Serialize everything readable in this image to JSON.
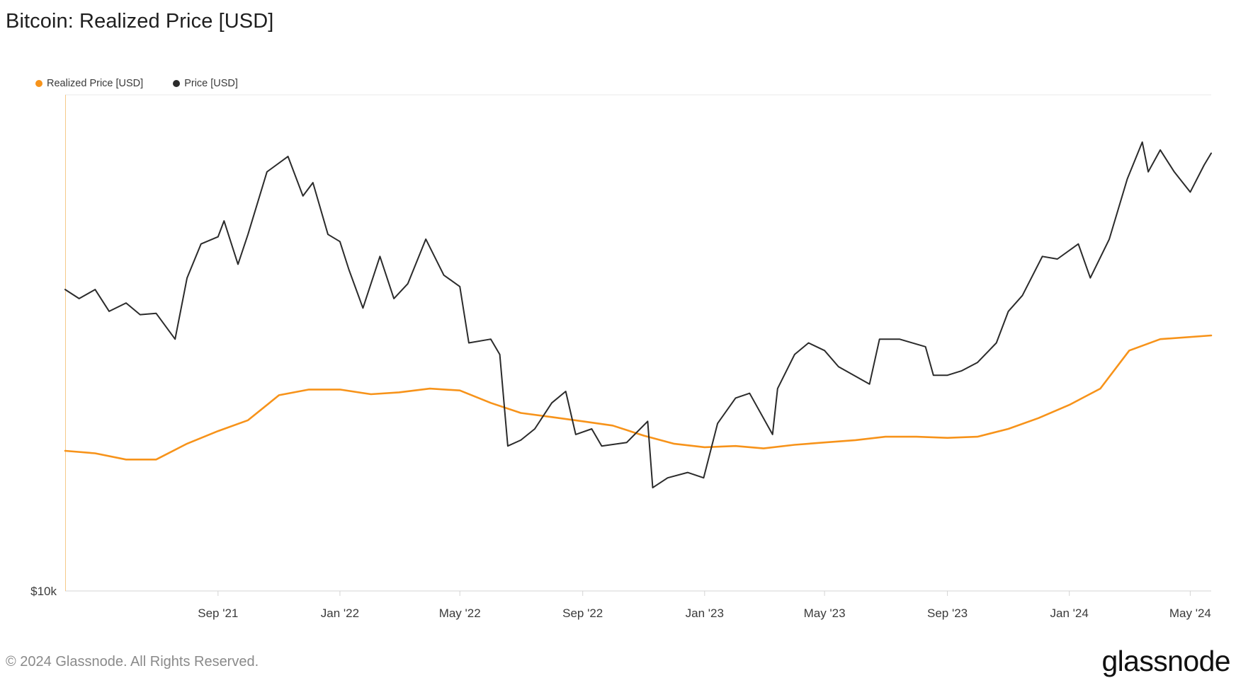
{
  "header": {
    "title": "Bitcoin: Realized Price [USD]"
  },
  "footer": {
    "copyright": "© 2024 Glassnode. All Rights Reserved.",
    "brand": "glassnode"
  },
  "colors": {
    "realized": "#f7931a",
    "price": "#2b2b2b",
    "grid": "#e9e9e9",
    "axis": "#d4d4d4"
  },
  "chart_data": {
    "type": "line",
    "title": "Bitcoin: Realized Price [USD]",
    "yscale": "log",
    "ylim": [
      10000,
      90000
    ],
    "y_tick_labels": [
      {
        "value": 10000,
        "label": "$10k"
      }
    ],
    "xlim": [
      "2021-04-01",
      "2024-05-22"
    ],
    "x_ticks": [
      {
        "date": "2021-09-01",
        "label": "Sep '21"
      },
      {
        "date": "2022-01-01",
        "label": "Jan '22"
      },
      {
        "date": "2022-05-01",
        "label": "May '22"
      },
      {
        "date": "2022-09-01",
        "label": "Sep '22"
      },
      {
        "date": "2023-01-01",
        "label": "Jan '23"
      },
      {
        "date": "2023-05-01",
        "label": "May '23"
      },
      {
        "date": "2023-09-01",
        "label": "Sep '23"
      },
      {
        "date": "2024-01-01",
        "label": "Jan '24"
      },
      {
        "date": "2024-05-01",
        "label": "May '24"
      }
    ],
    "legend_position": "top-left",
    "grid": false,
    "series": [
      {
        "name": "Realized Price [USD]",
        "color": "#f7931a",
        "points": [
          [
            "2021-04-01",
            18600
          ],
          [
            "2021-05-01",
            18400
          ],
          [
            "2021-06-01",
            17900
          ],
          [
            "2021-07-01",
            17900
          ],
          [
            "2021-08-01",
            19200
          ],
          [
            "2021-09-01",
            20300
          ],
          [
            "2021-10-01",
            21300
          ],
          [
            "2021-11-01",
            23800
          ],
          [
            "2021-12-01",
            24400
          ],
          [
            "2022-01-01",
            24400
          ],
          [
            "2022-02-01",
            23900
          ],
          [
            "2022-03-01",
            24100
          ],
          [
            "2022-04-01",
            24500
          ],
          [
            "2022-05-01",
            24300
          ],
          [
            "2022-06-01",
            23000
          ],
          [
            "2022-07-01",
            22000
          ],
          [
            "2022-08-01",
            21600
          ],
          [
            "2022-09-01",
            21200
          ],
          [
            "2022-10-01",
            20800
          ],
          [
            "2022-11-01",
            19900
          ],
          [
            "2022-12-01",
            19200
          ],
          [
            "2023-01-01",
            18900
          ],
          [
            "2023-02-01",
            19000
          ],
          [
            "2023-03-01",
            18800
          ],
          [
            "2023-04-01",
            19100
          ],
          [
            "2023-05-01",
            19300
          ],
          [
            "2023-06-01",
            19500
          ],
          [
            "2023-07-01",
            19800
          ],
          [
            "2023-08-01",
            19800
          ],
          [
            "2023-09-01",
            19700
          ],
          [
            "2023-10-01",
            19800
          ],
          [
            "2023-11-01",
            20500
          ],
          [
            "2023-12-01",
            21500
          ],
          [
            "2024-01-01",
            22800
          ],
          [
            "2024-02-01",
            24500
          ],
          [
            "2024-03-01",
            29000
          ],
          [
            "2024-04-01",
            30500
          ],
          [
            "2024-05-22",
            31000
          ]
        ]
      },
      {
        "name": "Price [USD]",
        "color": "#2b2b2b",
        "points": [
          [
            "2021-04-01",
            38000
          ],
          [
            "2021-04-15",
            36500
          ],
          [
            "2021-05-01",
            38000
          ],
          [
            "2021-05-15",
            34500
          ],
          [
            "2021-06-01",
            35800
          ],
          [
            "2021-06-15",
            34000
          ],
          [
            "2021-07-01",
            34200
          ],
          [
            "2021-07-20",
            30500
          ],
          [
            "2021-08-01",
            40000
          ],
          [
            "2021-08-15",
            46500
          ],
          [
            "2021-09-01",
            48000
          ],
          [
            "2021-09-07",
            51500
          ],
          [
            "2021-09-21",
            42500
          ],
          [
            "2021-10-01",
            48500
          ],
          [
            "2021-10-20",
            64000
          ],
          [
            "2021-11-10",
            68500
          ],
          [
            "2021-11-25",
            57500
          ],
          [
            "2021-12-05",
            61000
          ],
          [
            "2021-12-20",
            48500
          ],
          [
            "2022-01-01",
            47000
          ],
          [
            "2022-01-10",
            41500
          ],
          [
            "2022-01-24",
            35000
          ],
          [
            "2022-02-10",
            44000
          ],
          [
            "2022-02-24",
            36500
          ],
          [
            "2022-03-10",
            39000
          ],
          [
            "2022-03-28",
            47500
          ],
          [
            "2022-04-15",
            40500
          ],
          [
            "2022-05-01",
            38500
          ],
          [
            "2022-05-10",
            30000
          ],
          [
            "2022-06-01",
            30500
          ],
          [
            "2022-06-10",
            28500
          ],
          [
            "2022-06-18",
            19000
          ],
          [
            "2022-07-01",
            19500
          ],
          [
            "2022-07-15",
            20500
          ],
          [
            "2022-08-01",
            23000
          ],
          [
            "2022-08-15",
            24200
          ],
          [
            "2022-08-25",
            20000
          ],
          [
            "2022-09-10",
            20500
          ],
          [
            "2022-09-20",
            19000
          ],
          [
            "2022-10-15",
            19300
          ],
          [
            "2022-11-05",
            21200
          ],
          [
            "2022-11-10",
            15800
          ],
          [
            "2022-11-25",
            16500
          ],
          [
            "2022-12-15",
            16900
          ],
          [
            "2022-12-31",
            16500
          ],
          [
            "2023-01-14",
            21000
          ],
          [
            "2023-02-01",
            23500
          ],
          [
            "2023-02-15",
            24000
          ],
          [
            "2023-03-10",
            20000
          ],
          [
            "2023-03-15",
            24500
          ],
          [
            "2023-04-01",
            28500
          ],
          [
            "2023-04-15",
            30000
          ],
          [
            "2023-05-01",
            29000
          ],
          [
            "2023-05-15",
            27000
          ],
          [
            "2023-06-15",
            25000
          ],
          [
            "2023-06-25",
            30500
          ],
          [
            "2023-07-15",
            30500
          ],
          [
            "2023-08-10",
            29500
          ],
          [
            "2023-08-18",
            26000
          ],
          [
            "2023-09-01",
            26000
          ],
          [
            "2023-09-15",
            26500
          ],
          [
            "2023-10-01",
            27500
          ],
          [
            "2023-10-20",
            30000
          ],
          [
            "2023-11-01",
            34500
          ],
          [
            "2023-11-15",
            37000
          ],
          [
            "2023-12-05",
            44000
          ],
          [
            "2023-12-20",
            43500
          ],
          [
            "2024-01-10",
            46500
          ],
          [
            "2024-01-22",
            40000
          ],
          [
            "2024-02-10",
            47500
          ],
          [
            "2024-02-28",
            62000
          ],
          [
            "2024-03-14",
            73000
          ],
          [
            "2024-03-20",
            64000
          ],
          [
            "2024-04-01",
            70500
          ],
          [
            "2024-04-15",
            64000
          ],
          [
            "2024-05-01",
            58500
          ],
          [
            "2024-05-15",
            66000
          ],
          [
            "2024-05-22",
            69500
          ]
        ]
      }
    ]
  }
}
